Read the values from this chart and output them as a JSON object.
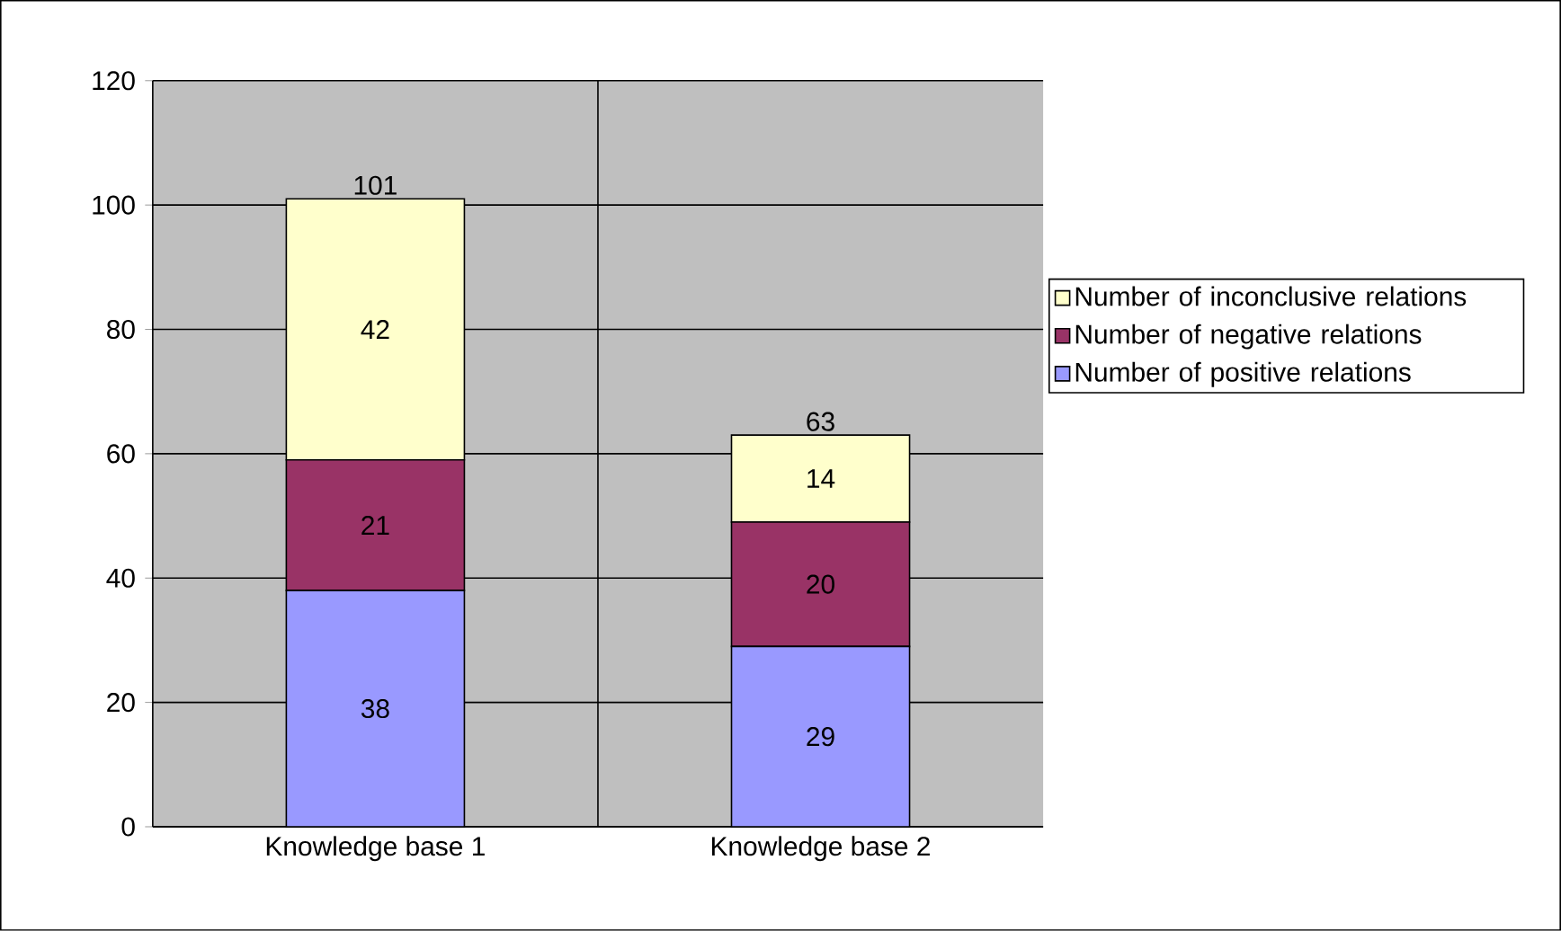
{
  "chart_data": {
    "type": "bar",
    "stacked": true,
    "categories": [
      "Knowledge base 1",
      "Knowledge base 2"
    ],
    "series": [
      {
        "name": "Number of positive relations",
        "color": "#9999ff",
        "values": [
          38,
          29
        ],
        "value_labels": [
          "38",
          "29"
        ]
      },
      {
        "name": "Number of negative relations",
        "color": "#993366",
        "values": [
          21,
          20
        ],
        "value_labels": [
          "21",
          "20"
        ]
      },
      {
        "name": "Number of inconclusive relations",
        "color": "#ffffcc",
        "values": [
          42,
          14
        ],
        "value_labels": [
          "42",
          "14"
        ]
      }
    ],
    "totals": [
      "101",
      "63"
    ],
    "ylim": [
      0,
      120
    ],
    "yticks": [
      0,
      20,
      40,
      60,
      80,
      100,
      120
    ],
    "grid": true,
    "legend": "right"
  }
}
